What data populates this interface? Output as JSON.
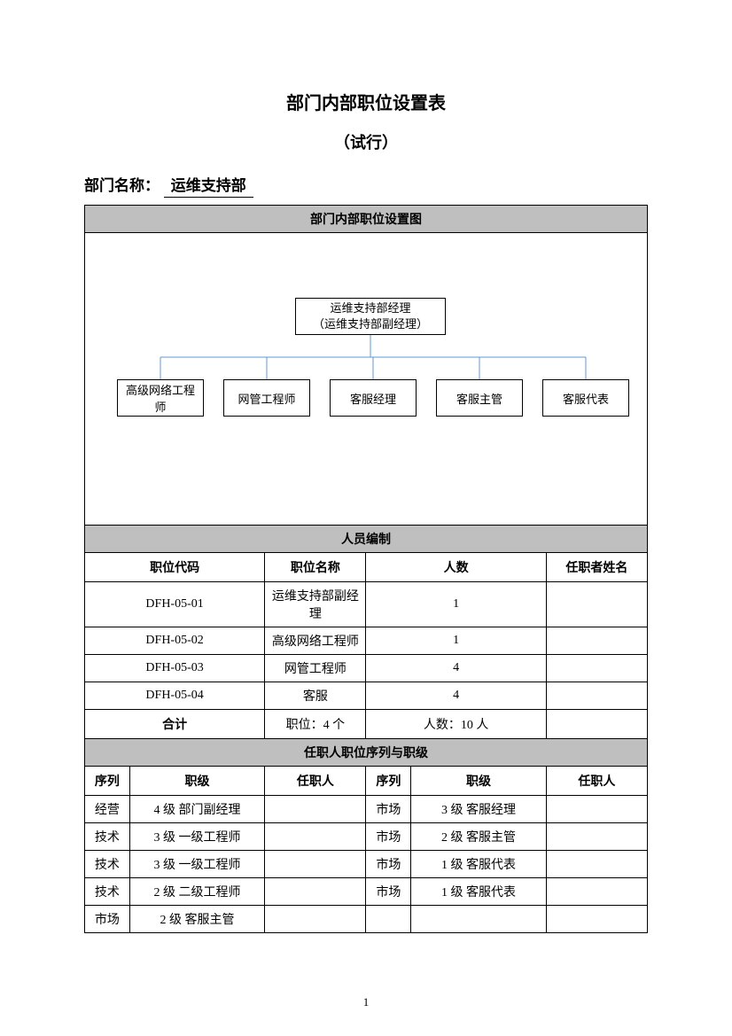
{
  "title": "部门内部职位设置表",
  "subtitle": "（试行）",
  "deptLabel": "部门名称：",
  "deptValue": "运维支持部",
  "sectionOrgTitle": "部门内部职位设置图",
  "org": {
    "topLine1": "运维支持部经理",
    "topLine2": "（运维支持部副经理）",
    "children": [
      "高级网络工程师",
      "网管工程师",
      "客服经理",
      "客服主管",
      "客服代表"
    ]
  },
  "staffing": {
    "header": "人员编制",
    "cols": [
      "职位代码",
      "职位名称",
      "人数",
      "任职者姓名"
    ],
    "rows": [
      {
        "code": "DFH-05-01",
        "name": "运维支持部副经理",
        "count": "1",
        "holder": ""
      },
      {
        "code": "DFH-05-02",
        "name": "高级网络工程师",
        "count": "1",
        "holder": ""
      },
      {
        "code": "DFH-05-03",
        "name": "网管工程师",
        "count": "4",
        "holder": ""
      },
      {
        "code": "DFH-05-04",
        "name": "客服",
        "count": "4",
        "holder": ""
      }
    ],
    "totalLabel": "合计",
    "totalPos": "职位：4 个",
    "totalCount": "人数：10 人"
  },
  "ranks": {
    "header": "任职人职位序列与职级",
    "cols": [
      "序列",
      "职级",
      "任职人",
      "序列",
      "职级",
      "任职人"
    ],
    "rows": [
      [
        "经营",
        "4 级 部门副经理",
        "",
        "市场",
        "3 级 客服经理",
        ""
      ],
      [
        "技术",
        "3 级 一级工程师",
        "",
        "市场",
        "2 级 客服主管",
        ""
      ],
      [
        "技术",
        "3 级 一级工程师",
        "",
        "市场",
        "1 级 客服代表",
        ""
      ],
      [
        "技术",
        "2 级 二级工程师",
        "",
        "市场",
        "1 级 客服代表",
        ""
      ],
      [
        "市场",
        "2 级 客服主管",
        "",
        "",
        "",
        ""
      ]
    ]
  },
  "pageNum": "1",
  "colors": {
    "sectionBg": "#bfbfbf",
    "orgLine": "#5b9bd5"
  }
}
